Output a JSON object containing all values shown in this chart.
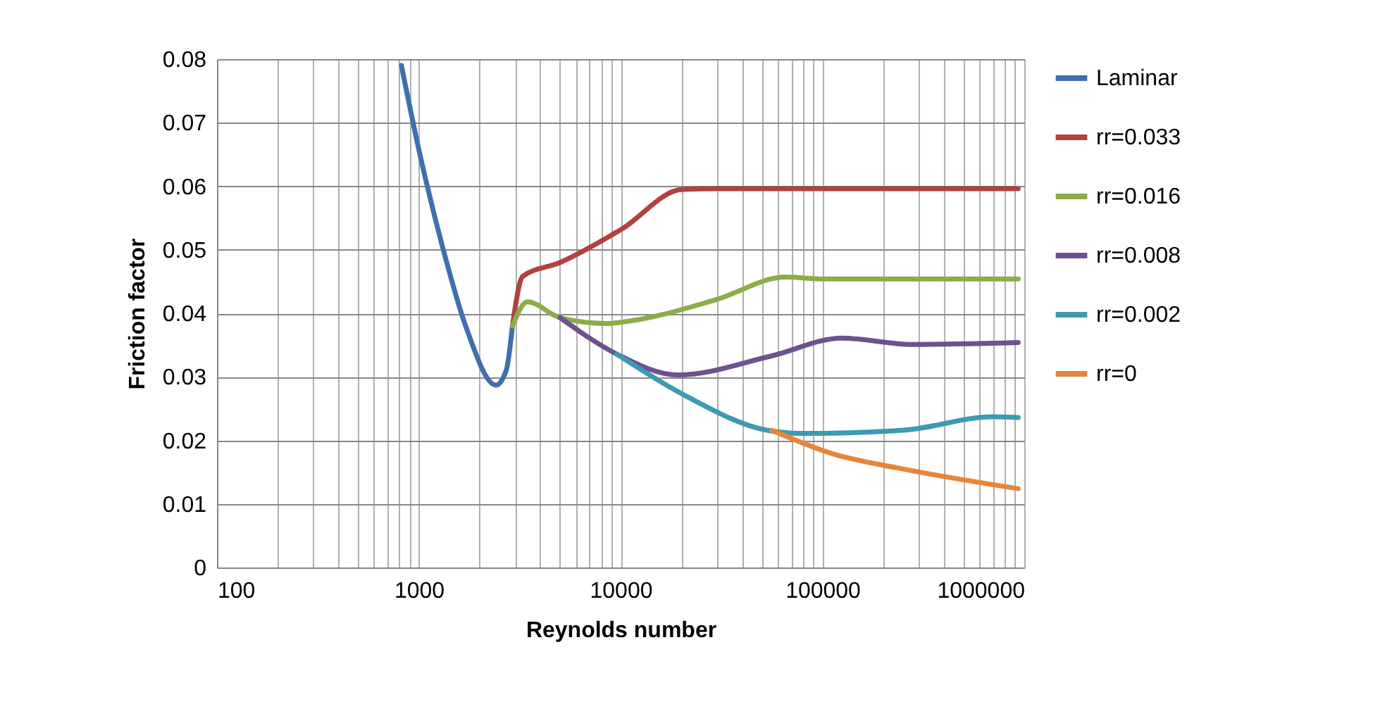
{
  "chart_data": {
    "type": "line",
    "xlabel": "Reynolds number",
    "ylabel": "Friction factor",
    "log": "x",
    "grid": true,
    "legend": "right",
    "line_style": "solid",
    "marker": "none",
    "xlim": [
      100,
      1000000
    ],
    "ylim": [
      0,
      0.08
    ],
    "xticks": [
      100,
      {
        "value": 200,
        "label": null
      },
      {
        "value": 300,
        "label": null
      },
      {
        "value": 400,
        "label": null
      },
      {
        "value": 500,
        "label": null
      },
      {
        "value": 600,
        "label": null
      },
      {
        "value": 700,
        "label": null
      },
      {
        "value": 800,
        "label": null
      },
      {
        "value": 900,
        "label": null
      },
      1000,
      {
        "value": 2000,
        "label": null
      },
      {
        "value": 3000,
        "label": null
      },
      {
        "value": 4000,
        "label": null
      },
      {
        "value": 5000,
        "label": null
      },
      {
        "value": 6000,
        "label": null
      },
      {
        "value": 7000,
        "label": null
      },
      {
        "value": 8000,
        "label": null
      },
      {
        "value": 9000,
        "label": null
      },
      10000,
      {
        "value": 20000,
        "label": null
      },
      {
        "value": 30000,
        "label": null
      },
      {
        "value": 40000,
        "label": null
      },
      {
        "value": 50000,
        "label": null
      },
      {
        "value": 60000,
        "label": null
      },
      {
        "value": 70000,
        "label": null
      },
      {
        "value": 80000,
        "label": null
      },
      {
        "value": 90000,
        "label": null
      },
      100000,
      {
        "value": 200000,
        "label": null
      },
      {
        "value": 300000,
        "label": null
      },
      {
        "value": 400000,
        "label": null
      },
      {
        "value": 500000,
        "label": null
      },
      {
        "value": 600000,
        "label": null
      },
      {
        "value": 700000,
        "label": null
      },
      {
        "value": 800000,
        "label": null
      },
      {
        "value": 900000,
        "label": null
      },
      1000000
    ],
    "yticks": [
      0,
      0.01,
      0.02,
      0.03,
      0.04,
      0.05,
      0.06,
      0.07,
      0.08
    ],
    "series": [
      {
        "name": "Laminar",
        "color": "#3f6fad",
        "x": [
          820,
          1000,
          1315,
          1720,
          2410,
          2710,
          2910
        ],
        "values": [
          0.079,
          0.0658,
          0.0503,
          0.0377,
          0.0287,
          0.031,
          0.038
        ]
      },
      {
        "name": "rr=0.033",
        "color": "#b0423f",
        "x": [
          2910,
          3270,
          5020,
          10070,
          20200,
          30000,
          100000,
          933000
        ],
        "values": [
          0.038,
          0.0458,
          0.048,
          0.0532,
          0.0595,
          0.0596,
          0.0596,
          0.0596
        ]
      },
      {
        "name": "rr=0.016",
        "color": "#8dac4a",
        "x": [
          2910,
          3450,
          5020,
          8590,
          10070,
          29400,
          65700,
          101000,
          933000
        ],
        "values": [
          0.038,
          0.0418,
          0.0393,
          0.0384,
          0.0386,
          0.0421,
          0.0457,
          0.0454,
          0.0454
        ]
      },
      {
        "name": "rr=0.008",
        "color": "#6e5190",
        "x": [
          5020,
          9550,
          19200,
          56000,
          125000,
          279000,
          933000
        ],
        "values": [
          0.0393,
          0.0336,
          0.0303,
          0.0333,
          0.0361,
          0.0351,
          0.0354
        ]
      },
      {
        "name": "rr=0.002",
        "color": "#3d9ab2",
        "x": [
          9550,
          20200,
          53100,
          77300,
          251000,
          695000,
          933000
        ],
        "values": [
          0.0336,
          0.0273,
          0.0216,
          0.0211,
          0.0216,
          0.0237,
          0.0236
        ]
      },
      {
        "name": "rr=0",
        "color": "#e6863a",
        "x": [
          56000,
          112000,
          251000,
          933000
        ],
        "values": [
          0.0216,
          0.0179,
          0.0155,
          0.0124
        ]
      }
    ]
  }
}
